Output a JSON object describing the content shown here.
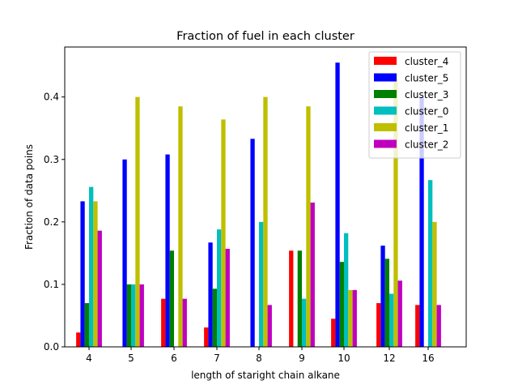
{
  "chart_data": {
    "type": "bar",
    "title": "Fraction of fuel in each cluster",
    "xlabel": "length of staright chain alkane",
    "ylabel": "Fraction of data poins",
    "categories": [
      "4",
      "5",
      "6",
      "7",
      "8",
      "9",
      "10",
      "12",
      "16"
    ],
    "ylim": [
      0,
      0.48
    ],
    "yticks": [
      0.0,
      0.1,
      0.2,
      0.3,
      0.4
    ],
    "ytick_labels": [
      "0.0",
      "0.1",
      "0.2",
      "0.3",
      "0.4"
    ],
    "grid": false,
    "legend_position": "top-right",
    "series": [
      {
        "name": "cluster_4",
        "color": "#ff0000",
        "values": [
          0.023,
          0,
          0.077,
          0.031,
          0,
          0.154,
          0.045,
          0.07,
          0.067
        ]
      },
      {
        "name": "cluster_5",
        "color": "#0000ff",
        "values": [
          0.233,
          0.3,
          0.308,
          0.167,
          0.333,
          0,
          0.455,
          0.162,
          0.4
        ]
      },
      {
        "name": "cluster_3",
        "color": "#008000",
        "values": [
          0.07,
          0.1,
          0.154,
          0.093,
          0,
          0.154,
          0.136,
          0.141,
          0
        ]
      },
      {
        "name": "cluster_0",
        "color": "#00bfbf",
        "values": [
          0.256,
          0.1,
          0,
          0.188,
          0.2,
          0.077,
          0.182,
          0.085,
          0.267
        ]
      },
      {
        "name": "cluster_1",
        "color": "#bfbf00",
        "values": [
          0.233,
          0.4,
          0.385,
          0.364,
          0.4,
          0.385,
          0.091,
          0.437,
          0.2
        ]
      },
      {
        "name": "cluster_2",
        "color": "#bf00bf",
        "values": [
          0.186,
          0.1,
          0.077,
          0.157,
          0.067,
          0.231,
          0.091,
          0.106,
          0.067
        ]
      }
    ]
  }
}
